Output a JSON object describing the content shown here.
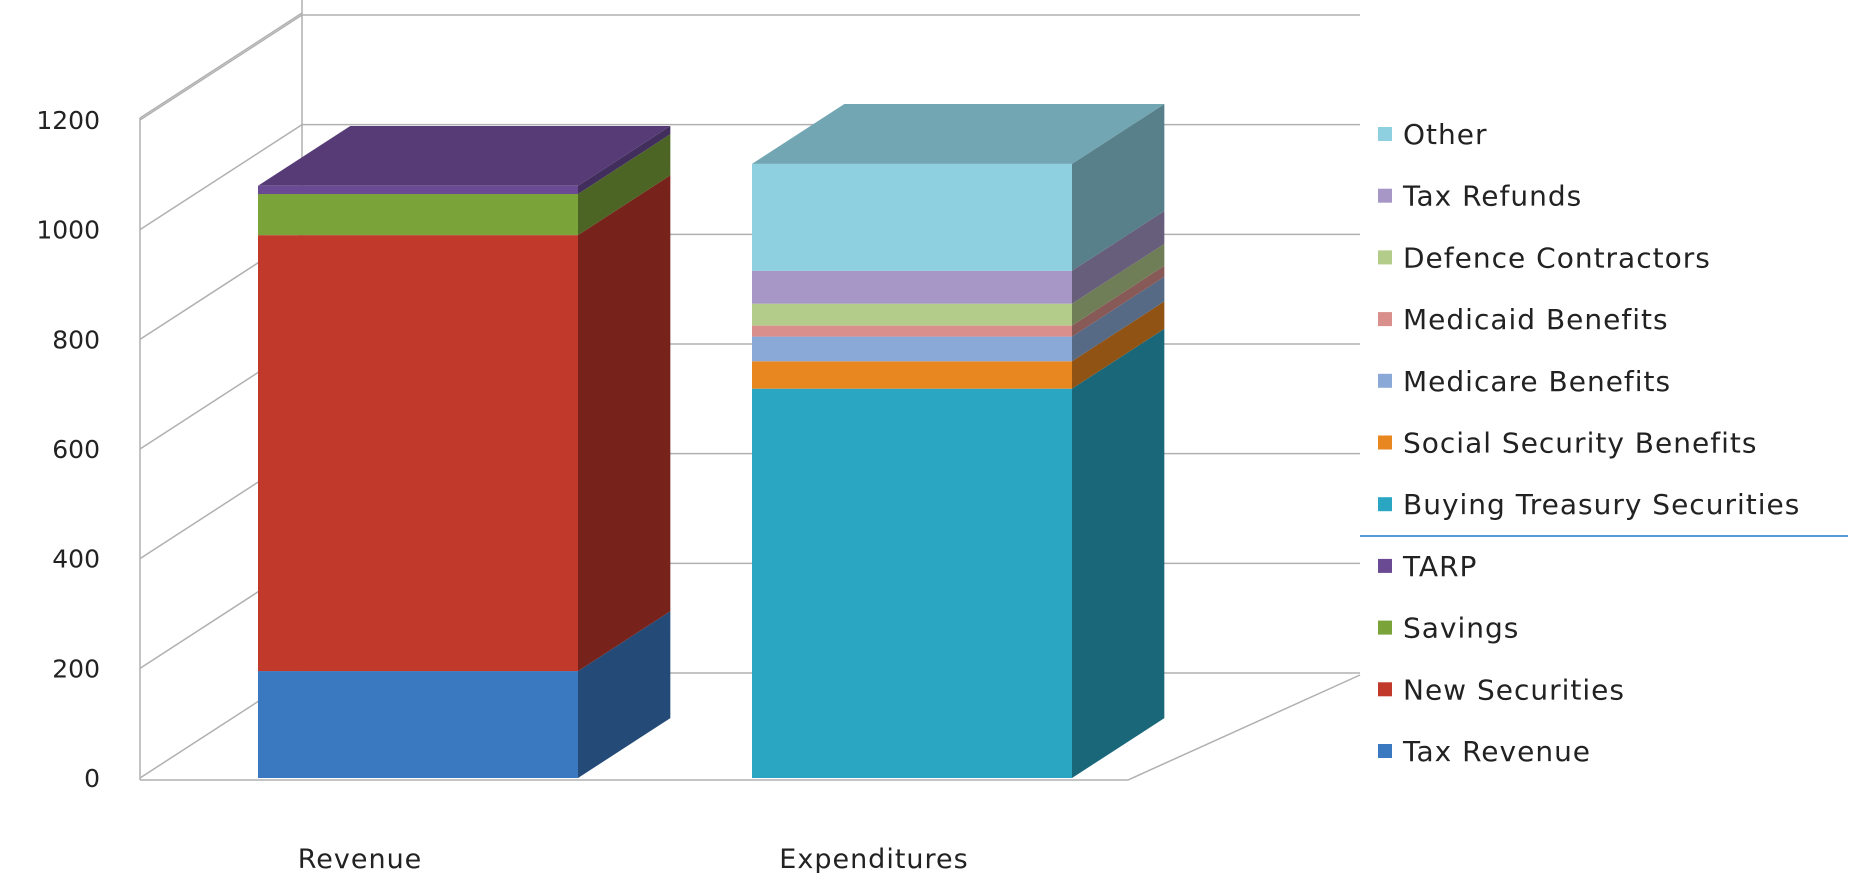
{
  "chart_data": {
    "type": "bar",
    "stacked": true,
    "three_d": true,
    "categories": [
      "Revenue",
      "Expenditures"
    ],
    "ylim": [
      0,
      1200
    ],
    "yticks": [
      0,
      200,
      400,
      600,
      800,
      1000,
      1200
    ],
    "grid": true,
    "legend_position": "right",
    "series": [
      {
        "name": "Tax Revenue",
        "values": [
          195,
          0
        ],
        "color": "#3a78c0"
      },
      {
        "name": "New Securities",
        "values": [
          795,
          0
        ],
        "color": "#c0392b"
      },
      {
        "name": "Savings",
        "values": [
          75,
          0
        ],
        "color": "#7aa33a"
      },
      {
        "name": "TARP",
        "values": [
          15,
          0
        ],
        "color": "#6b4a94"
      },
      {
        "name": "Buying Treasury Securities",
        "values": [
          0,
          710
        ],
        "color": "#2aa6c3"
      },
      {
        "name": "Social Security Benefits",
        "values": [
          0,
          50
        ],
        "color": "#e8861f"
      },
      {
        "name": "Medicare Benefits",
        "values": [
          0,
          45
        ],
        "color": "#8aa9d6"
      },
      {
        "name": "Medicaid Benefits",
        "values": [
          0,
          20
        ],
        "color": "#d98f8c"
      },
      {
        "name": "Defence Contractors",
        "values": [
          0,
          40
        ],
        "color": "#b3cc8a"
      },
      {
        "name": "Tax Refunds",
        "values": [
          0,
          60
        ],
        "color": "#a697c6"
      },
      {
        "name": "Other",
        "values": [
          0,
          195
        ],
        "color": "#8ecfe0"
      }
    ],
    "legend_order": [
      "Other",
      "Tax Refunds",
      "Defence Contractors",
      "Medicaid Benefits",
      "Medicare Benefits",
      "Social Security Benefits",
      "Buying Treasury Securities",
      "TARP",
      "Savings",
      "New Securities",
      "Tax Revenue"
    ]
  }
}
